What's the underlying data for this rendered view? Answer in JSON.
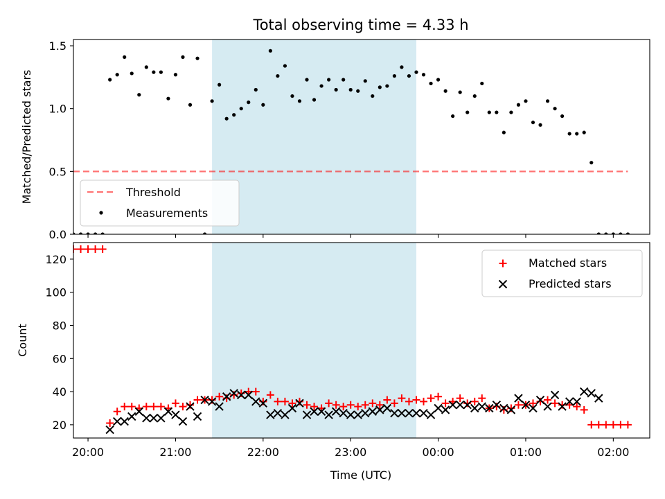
{
  "title": "Total observing time = 4.33 h",
  "colors": {
    "span": "#add8e6",
    "threshold": "#ff0000",
    "measurement": "#000000",
    "matched": "#ff0000",
    "predicted": "#000000"
  },
  "chart_data": [
    {
      "type": "scatter",
      "ylabel": "Matched/Predicted stars",
      "ylim": [
        0,
        1.55
      ],
      "yticks": [
        "0.0",
        "0.5",
        "1.0",
        "1.5"
      ],
      "ytick_values": [
        0,
        0.5,
        1.0,
        1.5
      ],
      "xlim": [
        "19:50",
        "02:25"
      ],
      "shaded_span": [
        "21:25",
        "23:45"
      ],
      "threshold": {
        "name": "Threshold",
        "y": 0.5,
        "x": [
          "19:50",
          "02:10"
        ]
      },
      "legend": {
        "placement": "lower left",
        "entries": [
          "Threshold",
          "Measurements"
        ]
      },
      "series": [
        {
          "name": "Measurements",
          "x": [
            "19:50",
            "19:55",
            "20:00",
            "20:05",
            "20:10",
            "20:15",
            "20:20",
            "20:25",
            "20:30",
            "20:35",
            "20:40",
            "20:45",
            "20:50",
            "20:55",
            "21:00",
            "21:05",
            "21:10",
            "21:15",
            "21:20",
            "21:25",
            "21:30",
            "21:35",
            "21:40",
            "21:45",
            "21:50",
            "21:55",
            "22:00",
            "22:05",
            "22:10",
            "22:15",
            "22:20",
            "22:25",
            "22:30",
            "22:35",
            "22:40",
            "22:45",
            "22:50",
            "22:55",
            "23:00",
            "23:05",
            "23:10",
            "23:15",
            "23:20",
            "23:25",
            "23:30",
            "23:35",
            "23:40",
            "23:45",
            "23:50",
            "23:55",
            "00:00",
            "00:05",
            "00:10",
            "00:15",
            "00:20",
            "00:25",
            "00:30",
            "00:35",
            "00:40",
            "00:45",
            "00:50",
            "00:55",
            "01:00",
            "01:05",
            "01:10",
            "01:15",
            "01:20",
            "01:25",
            "01:30",
            "01:35",
            "01:40",
            "01:45",
            "01:50",
            "01:55",
            "02:00",
            "02:05",
            "02:10"
          ],
          "y": [
            0,
            0,
            0,
            0,
            0,
            1.23,
            1.27,
            1.41,
            1.28,
            1.11,
            1.33,
            1.29,
            1.29,
            1.08,
            1.27,
            1.41,
            1.03,
            1.4,
            0,
            1.06,
            1.19,
            0.92,
            0.95,
            1.0,
            1.05,
            1.15,
            1.03,
            1.46,
            1.26,
            1.34,
            1.1,
            1.06,
            1.23,
            1.07,
            1.18,
            1.23,
            1.15,
            1.23,
            1.15,
            1.14,
            1.22,
            1.1,
            1.17,
            1.18,
            1.26,
            1.33,
            1.26,
            1.29,
            1.27,
            1.2,
            1.23,
            1.14,
            0.94,
            1.13,
            0.97,
            1.1,
            1.2,
            0.97,
            0.97,
            0.81,
            0.97,
            1.03,
            1.06,
            0.89,
            0.87,
            1.06,
            1.0,
            0.94,
            0.8,
            0.8,
            0.81,
            0.57,
            0,
            0,
            0,
            0,
            0
          ]
        }
      ]
    },
    {
      "type": "scatter",
      "xlabel": "Time (UTC)",
      "ylabel": "Count",
      "ylim": [
        12,
        130
      ],
      "yticks": [
        "20",
        "40",
        "60",
        "80",
        "100",
        "120"
      ],
      "ytick_values": [
        20,
        40,
        60,
        80,
        100,
        120
      ],
      "xlim": [
        "19:50",
        "02:25"
      ],
      "xtick_labels": [
        "20:00",
        "21:00",
        "22:00",
        "23:00",
        "00:00",
        "01:00",
        "02:00"
      ],
      "xtick_values": [
        "20:00",
        "21:00",
        "22:00",
        "23:00",
        "00:00",
        "01:00",
        "02:00"
      ],
      "shaded_span": [
        "21:25",
        "23:45"
      ],
      "legend": {
        "placement": "upper right",
        "entries": [
          "Matched stars",
          "Predicted stars"
        ]
      },
      "series": [
        {
          "name": "Matched stars",
          "x": [
            "19:50",
            "19:55",
            "20:00",
            "20:05",
            "20:10",
            "20:15",
            "20:20",
            "20:25",
            "20:30",
            "20:35",
            "20:40",
            "20:45",
            "20:50",
            "20:55",
            "21:00",
            "21:05",
            "21:10",
            "21:15",
            "21:20",
            "21:25",
            "21:30",
            "21:35",
            "21:40",
            "21:45",
            "21:50",
            "21:55",
            "22:00",
            "22:05",
            "22:10",
            "22:15",
            "22:20",
            "22:25",
            "22:30",
            "22:35",
            "22:40",
            "22:45",
            "22:50",
            "22:55",
            "23:00",
            "23:05",
            "23:10",
            "23:15",
            "23:20",
            "23:25",
            "23:30",
            "23:35",
            "23:40",
            "23:45",
            "23:50",
            "23:55",
            "00:00",
            "00:05",
            "00:10",
            "00:15",
            "00:20",
            "00:25",
            "00:30",
            "00:35",
            "00:40",
            "00:45",
            "00:50",
            "00:55",
            "01:00",
            "01:05",
            "01:10",
            "01:15",
            "01:20",
            "01:25",
            "01:30",
            "01:35",
            "01:40",
            "01:45",
            "01:50",
            "01:55",
            "02:00",
            "02:05",
            "02:10"
          ],
          "y": [
            126,
            126,
            126,
            126,
            126,
            21,
            28,
            31,
            31,
            30,
            31,
            31,
            31,
            30,
            33,
            31,
            32,
            35,
            35,
            35,
            37,
            36,
            38,
            39,
            40,
            40,
            34,
            38,
            34,
            34,
            33,
            34,
            32,
            31,
            30,
            33,
            32,
            31,
            32,
            31,
            32,
            33,
            32,
            35,
            33,
            36,
            34,
            35,
            34,
            36,
            37,
            33,
            34,
            36,
            33,
            34,
            36,
            30,
            31,
            29,
            30,
            32,
            32,
            33,
            34,
            35,
            33,
            32,
            32,
            31,
            29,
            20,
            20,
            20,
            20,
            20,
            20
          ]
        },
        {
          "name": "Predicted stars",
          "x": [
            "20:15",
            "20:20",
            "20:25",
            "20:30",
            "20:35",
            "20:40",
            "20:45",
            "20:50",
            "20:55",
            "21:00",
            "21:05",
            "21:10",
            "21:15",
            "21:20",
            "21:25",
            "21:30",
            "21:35",
            "21:40",
            "21:45",
            "21:50",
            "21:55",
            "22:00",
            "22:05",
            "22:10",
            "22:15",
            "22:20",
            "22:25",
            "22:30",
            "22:35",
            "22:40",
            "22:45",
            "22:50",
            "22:55",
            "23:00",
            "23:05",
            "23:10",
            "23:15",
            "23:20",
            "23:25",
            "23:30",
            "23:35",
            "23:40",
            "23:45",
            "23:50",
            "23:55",
            "00:00",
            "00:05",
            "00:10",
            "00:15",
            "00:20",
            "00:25",
            "00:30",
            "00:35",
            "00:40",
            "00:45",
            "00:50",
            "00:55",
            "01:00",
            "01:05",
            "01:10",
            "01:15",
            "01:20",
            "01:25",
            "01:30",
            "01:35",
            "01:40",
            "01:45",
            "01:50"
          ],
          "y": [
            17,
            22,
            22,
            25,
            28,
            24,
            24,
            24,
            28,
            26,
            22,
            31,
            25,
            35,
            34,
            31,
            37,
            39,
            38,
            38,
            34,
            33,
            26,
            27,
            26,
            30,
            33,
            26,
            28,
            28,
            26,
            28,
            27,
            26,
            26,
            27,
            28,
            29,
            30,
            27,
            27,
            27,
            27,
            27,
            26,
            30,
            29,
            32,
            32,
            32,
            30,
            31,
            30,
            32,
            30,
            29,
            36,
            32,
            30,
            35,
            31,
            38,
            31,
            34,
            34,
            40,
            39,
            36
          ]
        }
      ]
    }
  ]
}
